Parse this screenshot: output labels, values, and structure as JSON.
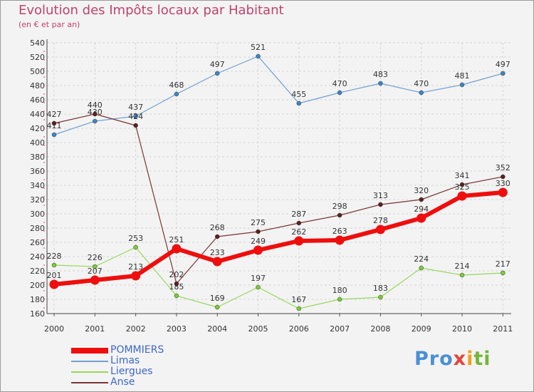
{
  "chart_data": {
    "type": "line",
    "title": "Evolution des Impôts locaux par Habitant",
    "subtitle": "(en € et par an)",
    "xlabel": "",
    "ylabel": "",
    "ylim": [
      160,
      540
    ],
    "ytick_step": 20,
    "grid": true,
    "legend_position": "bottom-left",
    "categories": [
      "2000",
      "2001",
      "2002",
      "2003",
      "2004",
      "2005",
      "2006",
      "2007",
      "2008",
      "2009",
      "2010",
      "2011"
    ],
    "series": [
      {
        "name": "Limas",
        "color": "#6fa1cf",
        "marker": "#3f84c4",
        "values": [
          411,
          430,
          437,
          468,
          497,
          521,
          455,
          470,
          483,
          470,
          481,
          497
        ]
      },
      {
        "name": "Liergues",
        "color": "#96d85c",
        "marker": "#7acb3a",
        "values": [
          228,
          226,
          253,
          185,
          169,
          197,
          167,
          180,
          183,
          224,
          214,
          217
        ]
      },
      {
        "name": "Anse",
        "color": "#7a3434",
        "marker": "#5c1f1f",
        "values": [
          427,
          440,
          424,
          202,
          268,
          275,
          287,
          298,
          313,
          320,
          341,
          352
        ]
      },
      {
        "name": "POMMIERS",
        "color": "#ee0e0e",
        "marker": "#ee0e0e",
        "values": [
          201,
          207,
          213,
          251,
          233,
          249,
          262,
          263,
          278,
          294,
          325,
          330
        ]
      }
    ],
    "legend_order": [
      "POMMIERS",
      "Limas",
      "Liergues",
      "Anse"
    ]
  },
  "legend": {
    "pommiers": "POMMIERS",
    "limas": "Limas",
    "liergues": "Liergues",
    "anse": "Anse"
  },
  "logo": {
    "part1": "Pro",
    "part2": "x",
    "part3": "i",
    "part4": "ti"
  },
  "colors": {
    "title": "#c0426d",
    "background": "#f3f3f3"
  }
}
